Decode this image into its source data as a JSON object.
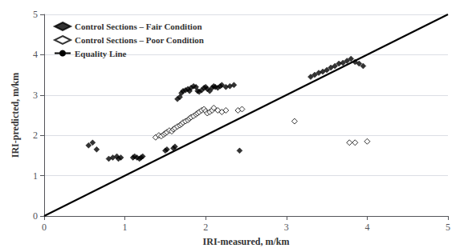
{
  "chart_data": {
    "type": "scatter",
    "xlabel": "IRI-measured, m/km",
    "ylabel": "IRI-predicted, m/km",
    "xlim": [
      0,
      5
    ],
    "ylim": [
      0,
      5
    ],
    "xticks": [
      0,
      1,
      2,
      3,
      4,
      5
    ],
    "yticks": [
      0,
      1,
      2,
      3,
      4,
      5
    ],
    "grid": "y",
    "legend": "upper left",
    "series": [
      {
        "name": "Control Sections – Fair Condition",
        "type": "scatter",
        "marker": "diamond",
        "color": "black",
        "x": [
          0.55,
          0.6,
          0.65,
          0.8,
          0.85,
          0.9,
          0.92,
          0.95,
          1.1,
          1.12,
          1.15,
          1.18,
          1.2,
          1.22,
          1.5,
          1.52,
          1.6,
          1.62,
          1.65,
          1.68,
          1.7,
          1.72,
          1.75,
          1.78,
          1.8,
          1.82,
          1.85,
          1.88,
          1.9,
          1.92,
          1.95,
          1.98,
          2.0,
          2.02,
          2.05,
          2.08,
          2.1,
          2.12,
          2.15,
          2.18,
          2.2,
          2.25,
          2.3,
          2.35,
          2.42,
          3.3,
          3.35,
          3.4,
          3.45,
          3.5,
          3.55,
          3.6,
          3.65,
          3.7,
          3.75,
          3.8,
          3.85,
          3.9,
          3.95
        ],
        "values": [
          1.75,
          1.82,
          1.65,
          1.42,
          1.45,
          1.48,
          1.42,
          1.45,
          1.45,
          1.48,
          1.45,
          1.42,
          1.45,
          1.48,
          1.62,
          1.65,
          1.68,
          1.72,
          2.9,
          2.95,
          3.05,
          3.1,
          3.12,
          3.15,
          3.1,
          3.18,
          3.22,
          3.2,
          3.1,
          3.08,
          3.12,
          3.18,
          3.2,
          3.15,
          3.1,
          3.18,
          3.22,
          3.2,
          3.18,
          3.22,
          3.25,
          3.2,
          3.22,
          3.25,
          1.62,
          3.45,
          3.5,
          3.55,
          3.58,
          3.62,
          3.68,
          3.72,
          3.78,
          3.8,
          3.85,
          3.9,
          3.82,
          3.78,
          3.72
        ]
      },
      {
        "name": "Control Sections – Poor Condition",
        "type": "scatter",
        "marker": "open_diamond",
        "color": "black",
        "x": [
          1.38,
          1.42,
          1.45,
          1.48,
          1.5,
          1.52,
          1.55,
          1.58,
          1.6,
          1.62,
          1.65,
          1.68,
          1.7,
          1.72,
          1.75,
          1.78,
          1.8,
          1.82,
          1.85,
          1.88,
          1.9,
          1.92,
          1.95,
          1.98,
          2.0,
          2.02,
          2.05,
          2.08,
          2.1,
          2.15,
          2.2,
          2.25,
          2.4,
          2.45,
          3.1,
          3.78,
          3.85,
          4.0
        ],
        "values": [
          1.95,
          2.0,
          1.98,
          2.02,
          2.05,
          2.08,
          2.12,
          2.1,
          2.15,
          2.18,
          2.22,
          2.25,
          2.28,
          2.32,
          2.35,
          2.38,
          2.42,
          2.45,
          2.48,
          2.52,
          2.55,
          2.58,
          2.62,
          2.65,
          2.6,
          2.55,
          2.58,
          2.62,
          2.68,
          2.62,
          2.58,
          2.62,
          2.62,
          2.65,
          2.35,
          1.82,
          1.82,
          1.85
        ]
      },
      {
        "name": "Equality Line",
        "type": "line",
        "line_style": "solid",
        "color": "black",
        "x": [
          0,
          5
        ],
        "values": [
          0,
          5
        ]
      }
    ]
  }
}
